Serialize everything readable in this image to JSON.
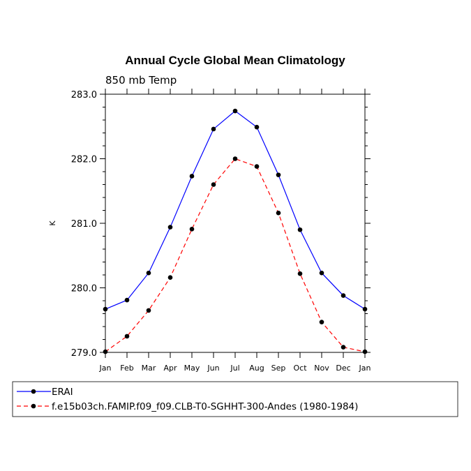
{
  "chart_data": {
    "type": "line",
    "title": "Annual Cycle Global Mean Climatology",
    "subtitle": "850 mb Temp",
    "xlabel": "",
    "ylabel": "K",
    "categories": [
      "Jan",
      "Feb",
      "Mar",
      "Apr",
      "May",
      "Jun",
      "Jul",
      "Aug",
      "Sep",
      "Oct",
      "Nov",
      "Dec",
      "Jan"
    ],
    "ylim": [
      279.0,
      283.0
    ],
    "yticks": [
      279.0,
      280.0,
      281.0,
      282.0,
      283.0
    ],
    "ytick_labels": [
      "279.0",
      "280.0",
      "281.0",
      "282.0",
      "283.0"
    ],
    "grid": false,
    "legend_position": "bottom",
    "series": [
      {
        "name": "ERAI",
        "color": "#0000ff",
        "line_style": "solid",
        "marker": "filled-circle",
        "values": [
          279.67,
          279.81,
          280.23,
          280.94,
          281.73,
          282.46,
          282.74,
          282.49,
          281.75,
          280.9,
          280.23,
          279.88,
          279.67
        ]
      },
      {
        "name": "f.e15b03ch.FAMIP.f09_f09.CLB-T0-SGHHT-300-Andes (1980-1984)",
        "color": "#ff0000",
        "line_style": "dashed",
        "marker": "filled-circle",
        "values": [
          279.01,
          279.25,
          279.65,
          280.16,
          280.91,
          281.6,
          282.0,
          281.88,
          281.16,
          280.22,
          279.47,
          279.08,
          279.01
        ]
      }
    ]
  }
}
